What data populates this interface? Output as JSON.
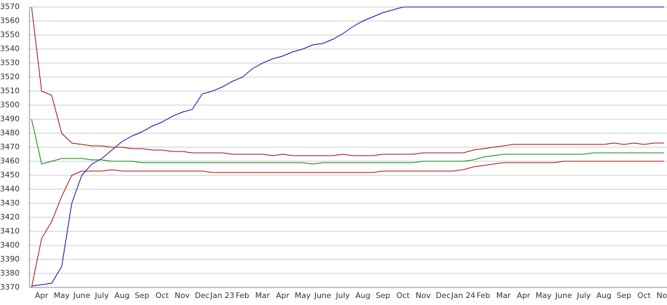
{
  "chart_data": {
    "type": "line",
    "categories": [
      null,
      "Apr",
      null,
      "May",
      null,
      "June",
      null,
      "July",
      null,
      "Aug",
      null,
      "Sep",
      null,
      "Oct",
      null,
      "Nov",
      null,
      "Dec",
      null,
      "Jan 23",
      null,
      "Feb",
      null,
      "Mar",
      null,
      "Apr",
      null,
      "May",
      null,
      "June",
      null,
      "July",
      null,
      "Aug",
      null,
      "Sep",
      null,
      "Oct",
      null,
      "Nov",
      null,
      "Dec",
      null,
      "Jan 24",
      null,
      "Feb",
      null,
      "Mar",
      null,
      "Apr",
      null,
      "May",
      null,
      "June",
      null,
      "July",
      null,
      "Aug",
      null,
      "Sep",
      null,
      "Oct",
      null,
      "Nov"
    ],
    "series": [
      {
        "color": "#0000b0",
        "values": [
          3371,
          3372,
          3373,
          3385,
          3430,
          3450,
          3458,
          3462,
          3468,
          3474,
          3478,
          3481,
          3485,
          3488,
          3492,
          3495,
          3497,
          3508,
          3510,
          3513,
          3517,
          3520,
          3526,
          3530,
          3533,
          3535,
          3538,
          3540,
          3543,
          3544,
          3547,
          3551,
          3556,
          3560,
          3563,
          3566,
          3568,
          3570,
          3570,
          3570,
          3570,
          3570,
          3570,
          3570,
          3570,
          3570,
          3570,
          3570,
          3570,
          3570,
          3570,
          3570,
          3570,
          3570,
          3570,
          3570,
          3570,
          3570,
          3570,
          3570,
          3570,
          3570,
          3570,
          3570
        ]
      },
      {
        "color": "#a00000",
        "values": [
          3570,
          3510,
          3507,
          3480,
          3473,
          3472,
          3471,
          3471,
          3470,
          3470,
          3469,
          3469,
          3468,
          3468,
          3467,
          3467,
          3466,
          3466,
          3466,
          3466,
          3465,
          3465,
          3465,
          3465,
          3464,
          3465,
          3464,
          3464,
          3464,
          3464,
          3464,
          3465,
          3464,
          3464,
          3464,
          3465,
          3465,
          3465,
          3465,
          3466,
          3466,
          3466,
          3466,
          3466,
          3468,
          3469,
          3470,
          3471,
          3472,
          3472,
          3472,
          3472,
          3472,
          3472,
          3472,
          3472,
          3472,
          3472,
          3473,
          3472,
          3473,
          3472,
          3473,
          3473
        ]
      },
      {
        "color": "#008000",
        "values": [
          3490,
          3458,
          3460,
          3462,
          3462,
          3462,
          3461,
          3461,
          3460,
          3460,
          3460,
          3459,
          3459,
          3459,
          3459,
          3459,
          3459,
          3459,
          3459,
          3459,
          3459,
          3459,
          3459,
          3459,
          3459,
          3459,
          3459,
          3459,
          3458,
          3459,
          3459,
          3459,
          3459,
          3459,
          3459,
          3459,
          3459,
          3459,
          3459,
          3460,
          3460,
          3460,
          3460,
          3460,
          3461,
          3463,
          3464,
          3465,
          3465,
          3465,
          3465,
          3465,
          3465,
          3465,
          3465,
          3465,
          3466,
          3466,
          3466,
          3466,
          3466,
          3466,
          3466,
          3466
        ]
      },
      {
        "color": "#b00000",
        "values": [
          3370,
          3405,
          3417,
          3435,
          3450,
          3453,
          3453,
          3453,
          3454,
          3453,
          3453,
          3453,
          3453,
          3453,
          3453,
          3453,
          3453,
          3453,
          3452,
          3452,
          3452,
          3452,
          3452,
          3452,
          3452,
          3452,
          3452,
          3452,
          3452,
          3452,
          3452,
          3452,
          3452,
          3452,
          3452,
          3453,
          3453,
          3453,
          3453,
          3453,
          3453,
          3453,
          3453,
          3454,
          3456,
          3457,
          3458,
          3459,
          3459,
          3459,
          3459,
          3459,
          3459,
          3460,
          3460,
          3460,
          3460,
          3460,
          3460,
          3460,
          3460,
          3460,
          3460,
          3460
        ]
      }
    ],
    "ylim": [
      3370,
      3570
    ],
    "yticks": [
      3370,
      3380,
      3390,
      3400,
      3410,
      3420,
      3430,
      3440,
      3450,
      3460,
      3470,
      3480,
      3490,
      3500,
      3510,
      3520,
      3530,
      3540,
      3550,
      3560,
      3570
    ],
    "grid": true
  }
}
